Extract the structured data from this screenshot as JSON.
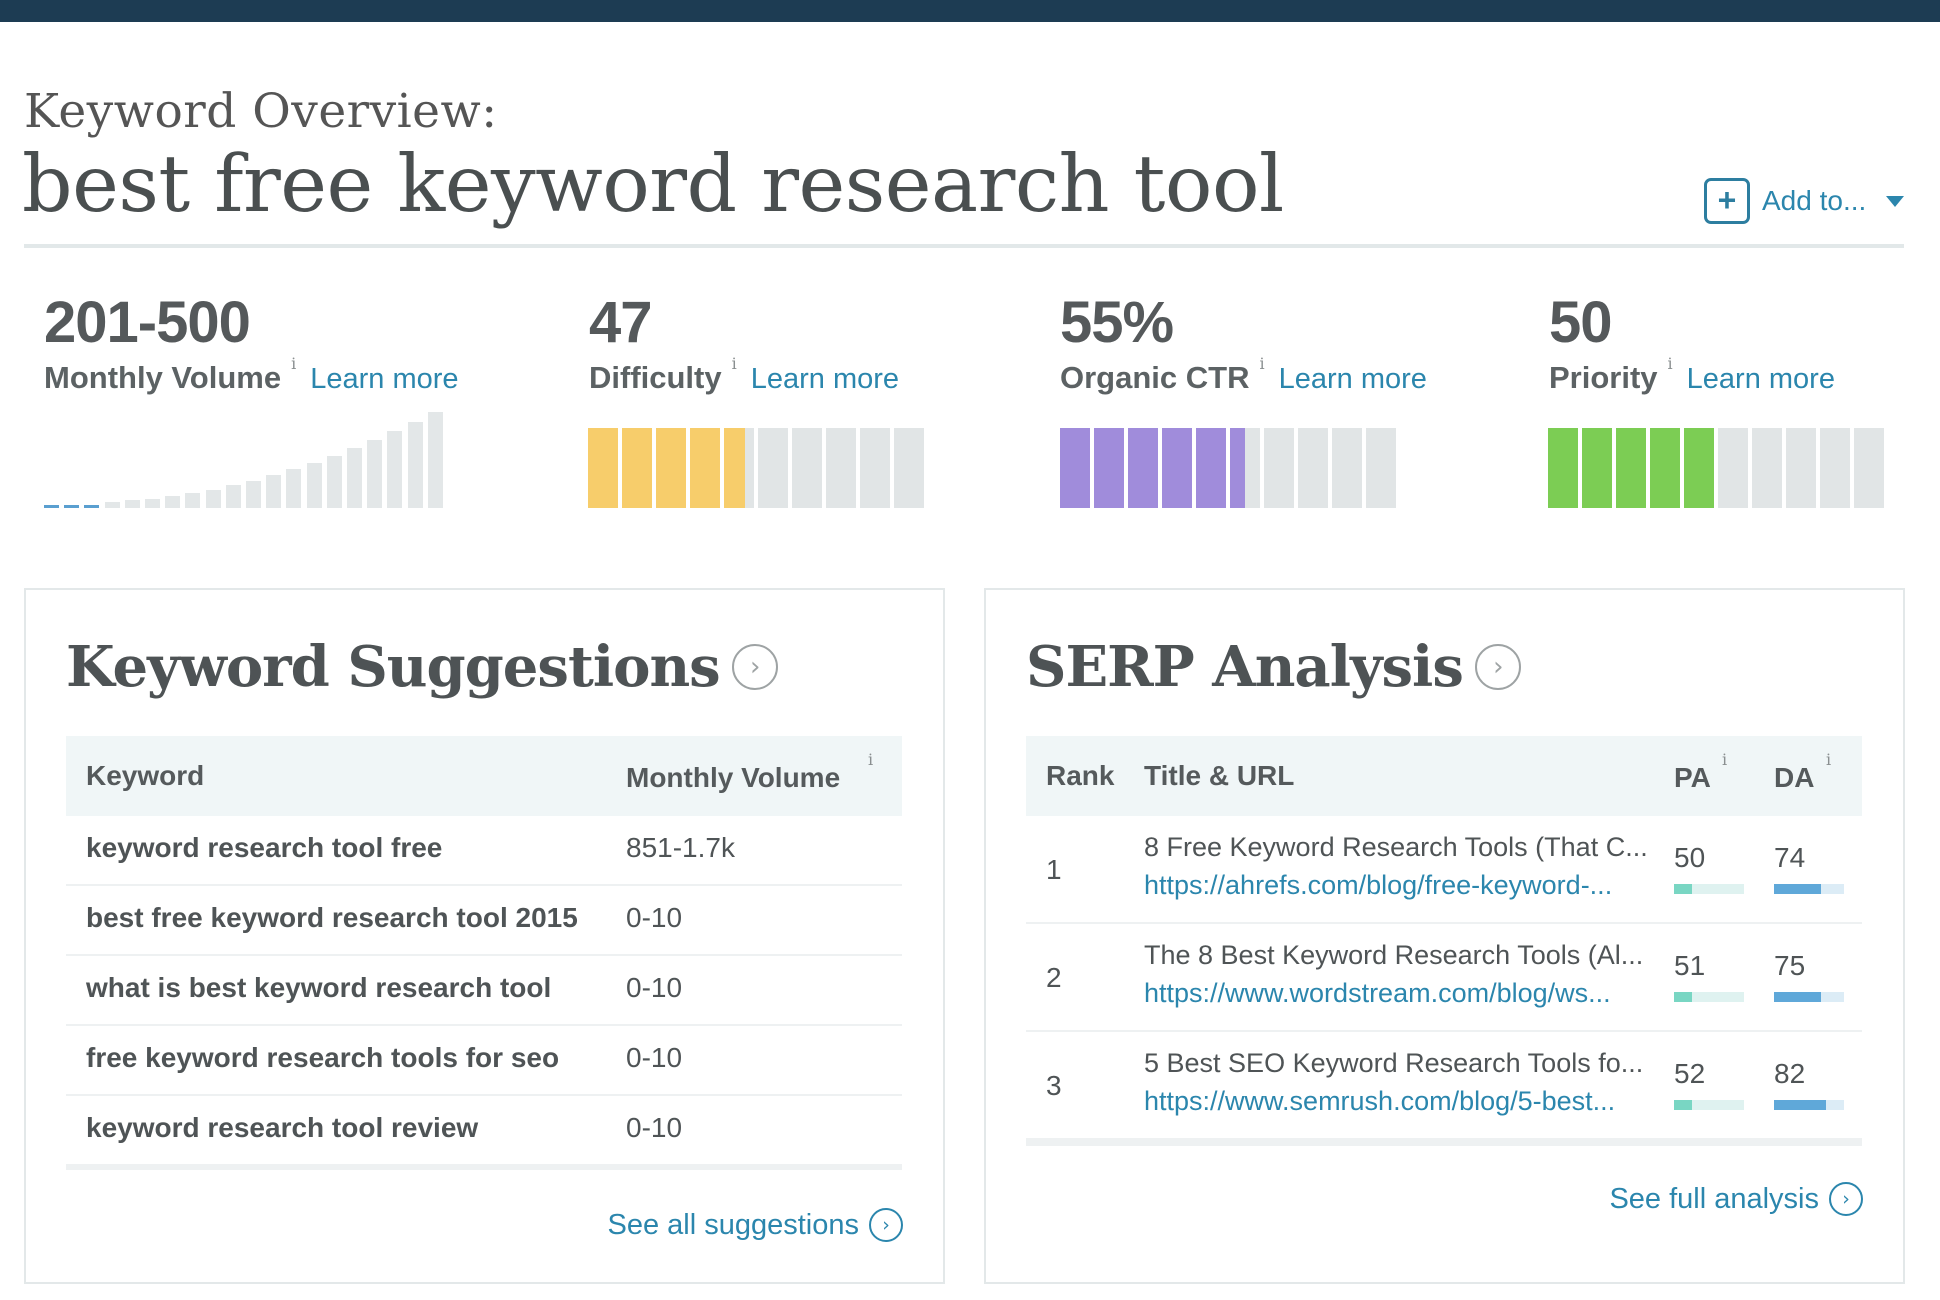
{
  "header": {
    "subtitle": "Keyword Overview:",
    "keyword": "best free keyword research tool",
    "add_to_label": "Add to...",
    "add_to_icon": "plus-icon"
  },
  "metrics": [
    {
      "value": "201-500",
      "label": "Monthly Volume",
      "info": "i",
      "learn_more": "Learn more",
      "level": 0.1
    },
    {
      "value": "47",
      "label": "Difficulty",
      "info": "i",
      "learn_more": "Learn more",
      "level": 0.47,
      "color": "#f7cd6b"
    },
    {
      "value": "55%",
      "label": "Organic CTR",
      "info": "i",
      "learn_more": "Learn more",
      "level": 0.55,
      "color": "#a08cdb"
    },
    {
      "value": "50",
      "label": "Priority",
      "info": "i",
      "learn_more": "Learn more",
      "level": 0.5,
      "color": "#7ccd54"
    }
  ],
  "keyword_suggestions": {
    "title": "Keyword Suggestions",
    "col_keyword": "Keyword",
    "col_volume": "Monthly Volume",
    "col_info": "i",
    "rows": [
      {
        "keyword": "keyword research tool free",
        "volume": "851-1.7k"
      },
      {
        "keyword": "best free keyword research tool 2015",
        "volume": "0-10"
      },
      {
        "keyword": "what is best keyword research tool",
        "volume": "0-10"
      },
      {
        "keyword": "free keyword research tools for seo",
        "volume": "0-10"
      },
      {
        "keyword": "keyword research tool review",
        "volume": "0-10"
      }
    ],
    "see_all": "See all suggestions"
  },
  "serp_analysis": {
    "title": "SERP Analysis",
    "col_rank": "Rank",
    "col_title": "Title & URL",
    "col_pa": "PA",
    "col_da": "DA",
    "col_info": "i",
    "rows": [
      {
        "rank": "1",
        "title": "8 Free Keyword Research Tools (That C...",
        "url": "https://ahrefs.com/blog/free-keyword-...",
        "pa": "50",
        "da": "74"
      },
      {
        "rank": "2",
        "title": "The 8 Best Keyword Research Tools (Al...",
        "url": "https://www.wordstream.com/blog/ws...",
        "pa": "51",
        "da": "75"
      },
      {
        "rank": "3",
        "title": "5 Best SEO Keyword Research Tools fo...",
        "url": "https://www.semrush.com/blog/5-best...",
        "pa": "52",
        "da": "82"
      }
    ],
    "see_full": "See full analysis"
  }
}
